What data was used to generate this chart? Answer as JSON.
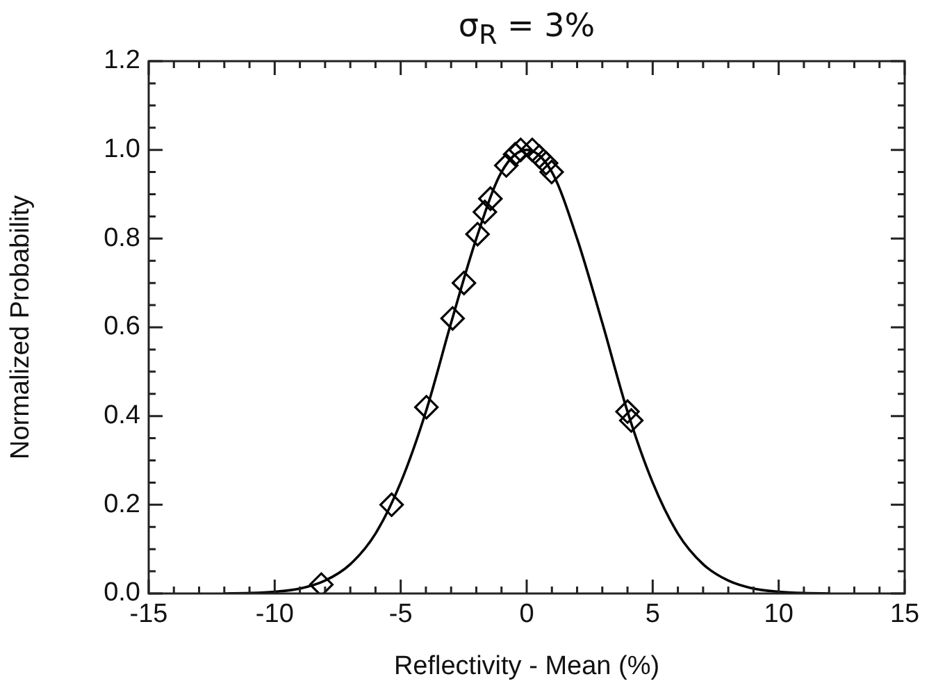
{
  "chart_data": {
    "type": "line",
    "title": "σ$_{R}$ = 3%",
    "xlabel": "Reflectivity - Mean (%)",
    "ylabel": "Normalized Probability",
    "xlim": [
      -15,
      15
    ],
    "ylim": [
      0,
      1.2
    ],
    "xticks": [
      -15,
      {
        "value": -14,
        "label": null
      },
      {
        "value": -13,
        "label": null
      },
      {
        "value": -12,
        "label": null
      },
      {
        "value": -11,
        "label": null
      },
      -10,
      {
        "value": -9,
        "label": null
      },
      {
        "value": -8,
        "label": null
      },
      {
        "value": -7,
        "label": null
      },
      {
        "value": -6,
        "label": null
      },
      -5,
      {
        "value": -4,
        "label": null
      },
      {
        "value": -3,
        "label": null
      },
      {
        "value": -2,
        "label": null
      },
      {
        "value": -1,
        "label": null
      },
      0,
      {
        "value": 1,
        "label": null
      },
      {
        "value": 2,
        "label": null
      },
      {
        "value": 3,
        "label": null
      },
      {
        "value": 4,
        "label": null
      },
      5,
      {
        "value": 6,
        "label": null
      },
      {
        "value": 7,
        "label": null
      },
      {
        "value": 8,
        "label": null
      },
      {
        "value": 9,
        "label": null
      },
      10,
      {
        "value": 11,
        "label": null
      },
      {
        "value": 12,
        "label": null
      },
      {
        "value": 13,
        "label": null
      },
      {
        "value": 14,
        "label": null
      },
      15
    ],
    "yticks": [
      {
        "value": 0,
        "label": "0.0"
      },
      {
        "value": 0.05,
        "label": null
      },
      {
        "value": 0.1,
        "label": null
      },
      {
        "value": 0.15,
        "label": null
      },
      0.2,
      {
        "value": 0.25,
        "label": null
      },
      {
        "value": 0.3,
        "label": null
      },
      {
        "value": 0.35,
        "label": null
      },
      0.4,
      {
        "value": 0.45,
        "label": null
      },
      {
        "value": 0.5,
        "label": null
      },
      {
        "value": 0.55,
        "label": null
      },
      0.6,
      {
        "value": 0.65,
        "label": null
      },
      {
        "value": 0.7,
        "label": null
      },
      {
        "value": 0.75,
        "label": null
      },
      0.8,
      {
        "value": 0.85,
        "label": null
      },
      {
        "value": 0.9,
        "label": null
      },
      {
        "value": 0.95,
        "label": null
      },
      {
        "value": 1,
        "label": "1.0"
      },
      {
        "value": 1.05,
        "label": null
      },
      {
        "value": 1.1,
        "label": null
      },
      {
        "value": 1.15,
        "label": null
      },
      1.2
    ],
    "grid": false,
    "legend": false,
    "series": [
      {
        "color": "#000000",
        "marker": "none",
        "x": [
          -12,
          -11,
          -10,
          -9,
          -8,
          -7,
          -6,
          -5,
          -4,
          -3,
          -2,
          -1,
          0,
          1,
          2,
          3,
          4,
          5,
          6,
          7,
          8,
          9,
          10,
          11,
          12
        ],
        "values": [
          0.0,
          0.001,
          0.004,
          0.011,
          0.029,
          0.066,
          0.135,
          0.25,
          0.41,
          0.61,
          0.8,
          0.95,
          1.0,
          0.95,
          0.8,
          0.61,
          0.41,
          0.25,
          0.135,
          0.066,
          0.029,
          0.011,
          0.004,
          0.001,
          0.0
        ]
      },
      {
        "type": "scatter",
        "color": "#000000",
        "marker": "diamond",
        "x": [
          -8.15,
          -5.36,
          -3.98,
          -2.94,
          -2.49,
          -1.95,
          -1.66,
          -1.44,
          -0.81,
          -0.46,
          -0.24,
          0.22,
          0.5,
          0.77,
          0.99,
          4.0,
          4.15
        ],
        "values": [
          0.02,
          0.2,
          0.42,
          0.62,
          0.7,
          0.81,
          0.86,
          0.89,
          0.965,
          0.99,
          1.0,
          1.0,
          0.985,
          0.97,
          0.95,
          0.41,
          0.39
        ]
      }
    ]
  }
}
